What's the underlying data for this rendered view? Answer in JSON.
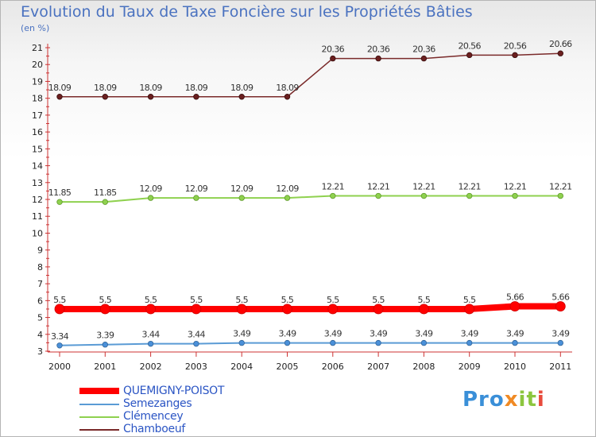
{
  "header": {
    "title": "Evolution du Taux de Taxe Foncière sur les Propriétés Bâties",
    "unit": "(en %)"
  },
  "logo": {
    "text": "Proxiti",
    "parts": [
      "Pro",
      "x",
      "it",
      "i"
    ]
  },
  "colors": {
    "QUEMIGNY-POISOT": "#ff0000",
    "Semezanges": "#5a9bd5",
    "Clémencey": "#8fd14f",
    "Chamboeuf": "#7a2a2a"
  },
  "chart_data": {
    "type": "line",
    "title": "Evolution du Taux de Taxe Foncière sur les Propriétés Bâties",
    "ylabel": "(en %)",
    "xlabel": "",
    "categories": [
      "2000",
      "2001",
      "2002",
      "2003",
      "2004",
      "2005",
      "2006",
      "2007",
      "2008",
      "2009",
      "2010",
      "2011"
    ],
    "ylim": [
      3,
      21
    ],
    "yticks": [
      3,
      4,
      5,
      6,
      7,
      8,
      9,
      10,
      11,
      12,
      13,
      14,
      15,
      16,
      17,
      18,
      19,
      20,
      21
    ],
    "grid": false,
    "legend": "bottom-left",
    "series": [
      {
        "name": "QUEMIGNY-POISOT",
        "values": [
          5.5,
          5.5,
          5.5,
          5.5,
          5.5,
          5.5,
          5.5,
          5.5,
          5.5,
          5.5,
          5.66,
          5.66
        ],
        "labels": [
          "5.5",
          "5.5",
          "5.5",
          "5.5",
          "5.5",
          "5.5",
          "5.5",
          "5.5",
          "5.5",
          "5.5",
          "5.66",
          "5.66"
        ]
      },
      {
        "name": "Semezanges",
        "values": [
          3.34,
          3.39,
          3.44,
          3.44,
          3.49,
          3.49,
          3.49,
          3.49,
          3.49,
          3.49,
          3.49,
          3.49
        ],
        "labels": [
          "3.34",
          "3.39",
          "3.44",
          "3.44",
          "3.49",
          "3.49",
          "3.49",
          "3.49",
          "3.49",
          "3.49",
          "3.49",
          "3.49"
        ]
      },
      {
        "name": "Clémencey",
        "values": [
          11.85,
          11.85,
          12.09,
          12.09,
          12.09,
          12.09,
          12.21,
          12.21,
          12.21,
          12.21,
          12.21,
          12.21
        ],
        "labels": [
          "11.85",
          "11.85",
          "12.09",
          "12.09",
          "12.09",
          "12.09",
          "12.21",
          "12.21",
          "12.21",
          "12.21",
          "12.21",
          "12.21"
        ]
      },
      {
        "name": "Chamboeuf",
        "values": [
          18.09,
          18.09,
          18.09,
          18.09,
          18.09,
          18.09,
          20.36,
          20.36,
          20.36,
          20.56,
          20.56,
          20.66
        ],
        "labels": [
          "18.09",
          "18.09",
          "18.09",
          "18.09",
          "18.09",
          "18.09",
          "20.36",
          "20.36",
          "20.36",
          "20.56",
          "20.56",
          "20.66"
        ]
      }
    ]
  }
}
